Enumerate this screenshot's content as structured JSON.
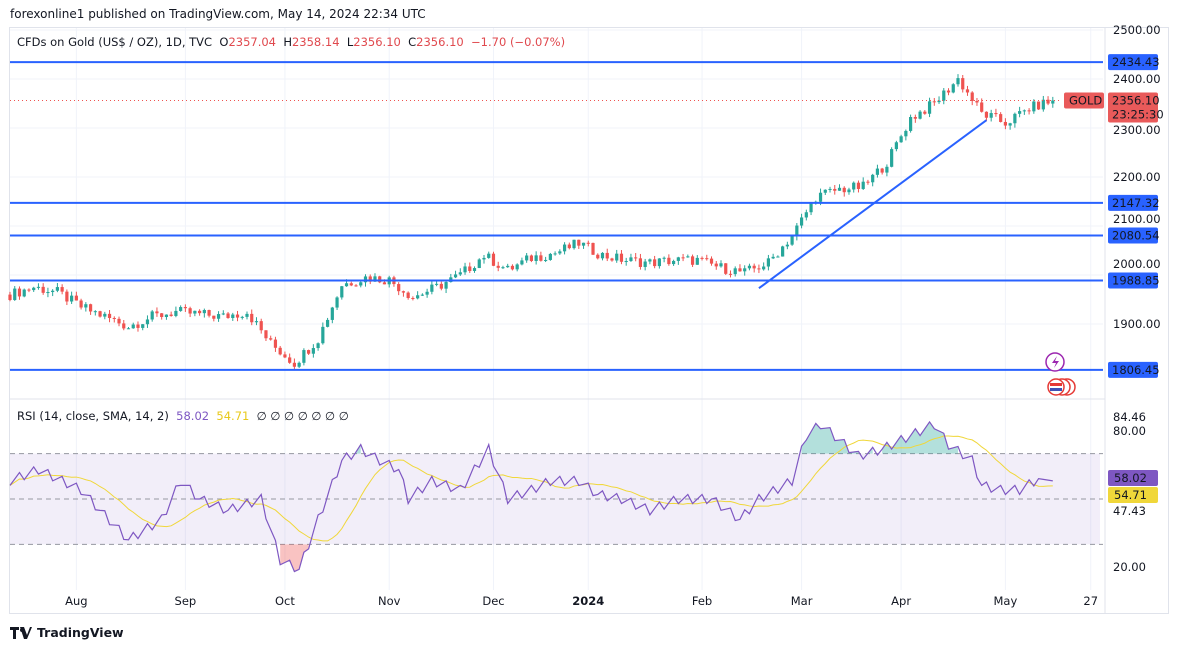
{
  "publisher_line": "forexonline1 published on TradingView.com, May 14, 2024 22:34 UTC",
  "legend": {
    "symbol": "CFDs on Gold (US$ / OZ), 1D, TVC",
    "o_label": "O",
    "o": "2357.04",
    "h_label": "H",
    "h": "2358.14",
    "l_label": "L",
    "l": "2356.10",
    "c_label": "C",
    "c": "2356.10",
    "change": "−1.70 (−0.07%)"
  },
  "rsi_legend": {
    "label": "RSI (14, close, SMA, 14, 2)",
    "rsi": "58.02",
    "sma": "54.71",
    "empty": "∅ ∅ ∅ ∅ ∅ ∅ ∅"
  },
  "footer": {
    "brand": "TradingView"
  },
  "colors": {
    "up": "#26a69a",
    "down": "#ef5350",
    "level": "#2962ff",
    "rsi": "#7e57c2",
    "sma": "#f0d73a",
    "band": "#7e57c2"
  },
  "chart_data": {
    "type": "candlestick",
    "title": "CFDs on Gold (US$ / OZ), 1D, TVC",
    "price_axis": {
      "ticks": [
        "2500.00",
        "2400.00",
        "2300.00",
        "2200.00",
        "2100.00",
        "2000.00",
        "1900.00"
      ],
      "tick_values": [
        2500,
        2400,
        2300,
        2200,
        2100,
        2000,
        1900
      ],
      "range": [
        1786,
        2500
      ]
    },
    "time_axis": {
      "labels": [
        "Aug",
        "Sep",
        "Oct",
        "Nov",
        "Dec",
        "2024",
        "Feb",
        "Mar",
        "Apr",
        "May",
        "27"
      ],
      "label_bar_index": [
        14,
        37,
        58,
        80,
        102,
        122,
        146,
        167,
        188,
        210,
        228
      ],
      "bars_total": 230
    },
    "weekly_closes_step5": [
      1960,
      1975,
      1965,
      1935,
      1915,
      1895,
      1915,
      1925,
      1920,
      1915,
      1925,
      1860,
      1820,
      1870,
      1980,
      1995,
      1990,
      1955,
      1975,
      2000,
      2040,
      2010,
      2035,
      2045,
      2065,
      2040,
      2030,
      2025,
      2030,
      2030,
      2015,
      2005,
      2025,
      2080,
      2160,
      2175,
      2180,
      2230,
      2320,
      2350,
      2400,
      2330,
      2310,
      2340,
      2356.1
    ],
    "levels": [
      {
        "price": 2434.43,
        "label": "2434.43"
      },
      {
        "price": 2147.32,
        "label": "2147.32"
      },
      {
        "price": 2080.54,
        "label": "2080.54"
      },
      {
        "price": 1988.85,
        "label": "1988.85"
      },
      {
        "price": 1806.45,
        "label": "1806.45"
      }
    ],
    "trendline": {
      "from": [
        158,
        1973
      ],
      "to": [
        206,
        2316
      ]
    },
    "current": {
      "symbol": "GOLD",
      "price": 2356.1,
      "price_label": "2356.10",
      "countdown": "23:25:30"
    },
    "rsi": {
      "ticks": [
        "80.00",
        "20.00"
      ],
      "tick_values": [
        80,
        20
      ],
      "range": [
        13,
        88
      ],
      "bands": [
        70,
        30
      ],
      "mid": 50,
      "extra_labels": [
        "84.46",
        "47.43"
      ],
      "last": "58.02",
      "sma_last": "54.71",
      "points": [
        [
          0,
          58
        ],
        [
          6,
          63
        ],
        [
          15,
          54
        ],
        [
          19,
          45
        ],
        [
          25,
          32
        ],
        [
          32,
          41
        ],
        [
          36,
          58
        ],
        [
          40,
          50
        ],
        [
          46,
          45
        ],
        [
          53,
          50
        ],
        [
          57,
          23
        ],
        [
          61,
          19
        ],
        [
          65,
          41
        ],
        [
          70,
          67
        ],
        [
          74,
          72
        ],
        [
          78,
          67
        ],
        [
          82,
          63
        ],
        [
          84,
          50
        ],
        [
          89,
          58
        ],
        [
          95,
          54
        ],
        [
          101,
          72
        ],
        [
          105,
          50
        ],
        [
          110,
          54
        ],
        [
          114,
          58
        ],
        [
          120,
          58
        ],
        [
          124,
          52
        ],
        [
          129,
          50
        ],
        [
          135,
          45
        ],
        [
          141,
          50
        ],
        [
          148,
          50
        ],
        [
          154,
          41
        ],
        [
          158,
          50
        ],
        [
          165,
          58
        ],
        [
          168,
          78
        ],
        [
          171,
          83
        ],
        [
          175,
          76
        ],
        [
          179,
          69
        ],
        [
          184,
          72
        ],
        [
          188,
          76
        ],
        [
          192,
          80
        ],
        [
          195,
          83
        ],
        [
          198,
          74
        ],
        [
          203,
          67
        ],
        [
          205,
          56
        ],
        [
          209,
          54
        ],
        [
          213,
          54
        ],
        [
          217,
          59
        ],
        [
          220,
          58
        ]
      ]
    }
  }
}
